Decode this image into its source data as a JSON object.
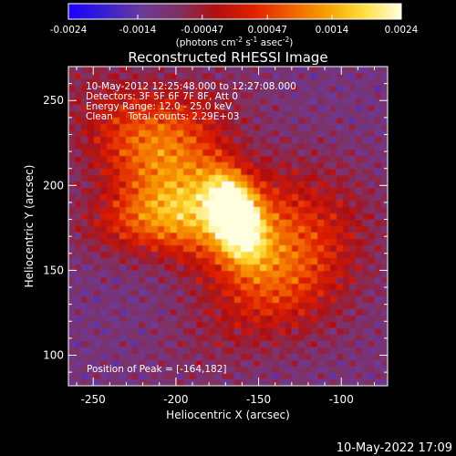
{
  "colorbar": {
    "ticks": [
      "-0.0024",
      "-0.0014",
      "-0.00047",
      "0.00047",
      "0.0014",
      "0.0024"
    ],
    "units_line": "(photons cm",
    "units_sup1": "-2",
    "units_mid1": " s",
    "units_sup2": "-1",
    "units_mid2": " asec",
    "units_sup3": "-2",
    "units_end": ")",
    "stops": [
      "#1a00ff",
      "#3a1fd0",
      "#6a3a9a",
      "#803060",
      "#b01010",
      "#e02000",
      "#f06000",
      "#f8a000",
      "#ffe040",
      "#ffffe0"
    ]
  },
  "chart_data": {
    "type": "heatmap",
    "title": "Reconstructed RHESSI Image",
    "xlabel": "Heliocentric X (arcsec)",
    "ylabel": "Heliocentric Y (arcsec)",
    "xlim": [
      -265,
      -72
    ],
    "ylim": [
      82,
      270
    ],
    "xticks": [
      -250,
      -200,
      -150,
      -100
    ],
    "yticks": [
      100,
      150,
      200,
      250
    ],
    "zlim": [
      -0.0024,
      0.0024
    ],
    "peak": {
      "x": -164,
      "y": 182
    },
    "annotations": {
      "time": "10-May-2012 12:25:48.000 to 12:27:08.000",
      "detectors": "Detectors: 3F 5F 6F 7F 8F, Att 0",
      "energy": "Energy Range: 12.0 - 25.0 keV",
      "method": "Clean     Total counts: 2.29E+03",
      "peak_label": "Position of Peak = [-164,182]"
    }
  },
  "footer": {
    "timestamp": "10-May-2022 17:09"
  }
}
